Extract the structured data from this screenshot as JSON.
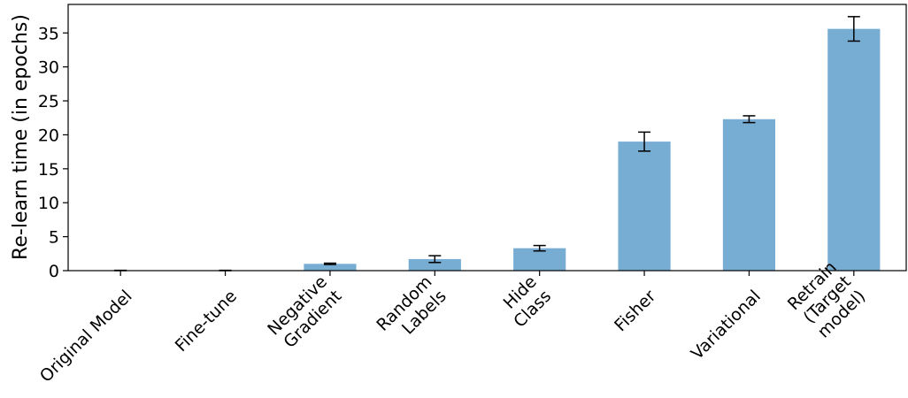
{
  "chart_data": {
    "type": "bar",
    "ylabel": "Re-learn time (in epochs)",
    "categories": [
      [
        "Original Model"
      ],
      [
        "Fine-tune"
      ],
      [
        "Negative",
        "Gradient"
      ],
      [
        "Random",
        "Labels"
      ],
      [
        "Hide",
        "Class"
      ],
      [
        "Fisher"
      ],
      [
        "Variational"
      ],
      [
        "Retrain",
        "(Target",
        "model)"
      ]
    ],
    "values": [
      0,
      0,
      1.0,
      1.7,
      3.3,
      19.0,
      22.3,
      35.6
    ],
    "errors": [
      0.05,
      0.05,
      0.1,
      0.5,
      0.4,
      1.4,
      0.5,
      1.8
    ],
    "ylim": [
      0,
      39.2
    ],
    "yticks": [
      0,
      5,
      10,
      15,
      20,
      25,
      30,
      35
    ],
    "grid": false,
    "bar_color": "#77acd3",
    "error_color": "#000000"
  }
}
